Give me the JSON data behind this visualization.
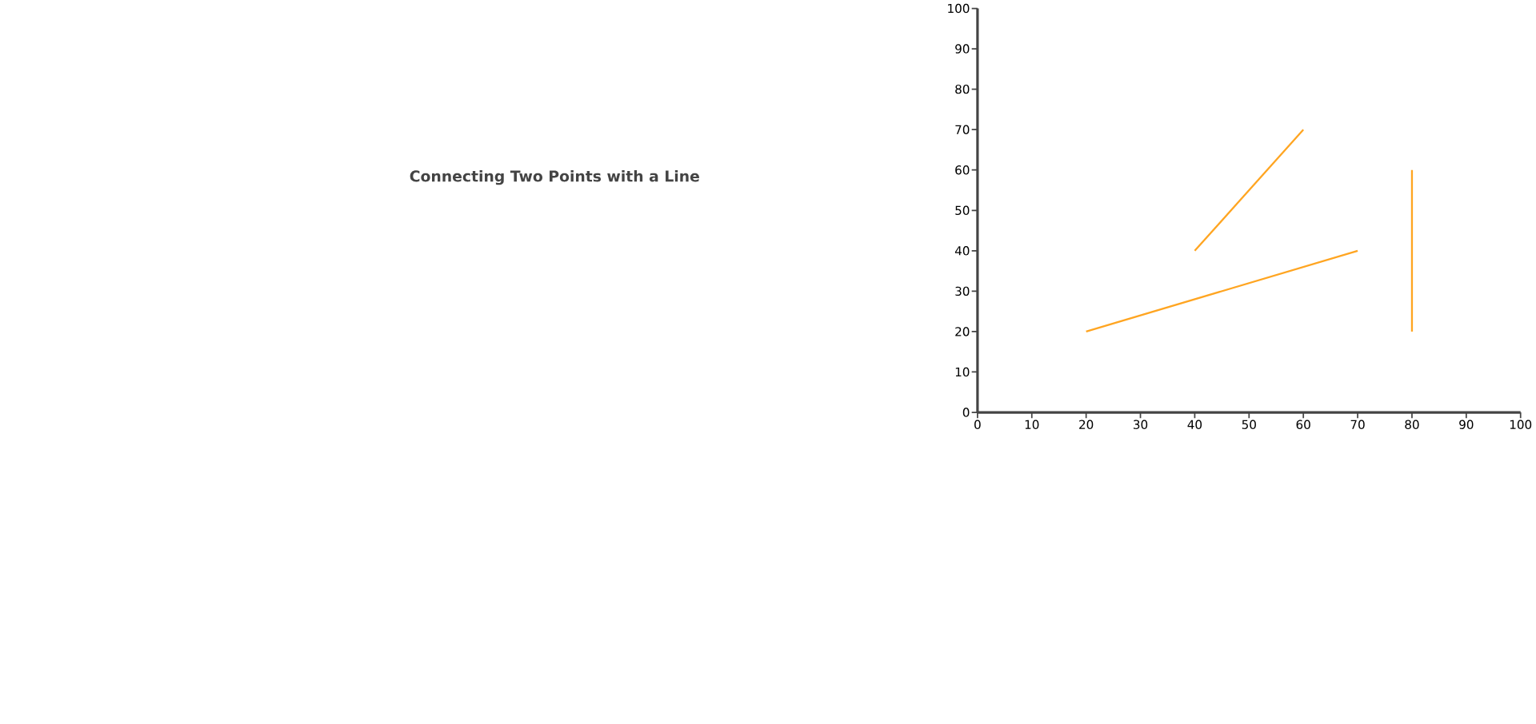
{
  "chart_data": {
    "type": "line",
    "title": "Connecting Two Points with a Line",
    "xlim": [
      0,
      100
    ],
    "ylim": [
      0,
      100
    ],
    "xticks": [
      0,
      10,
      20,
      30,
      40,
      50,
      60,
      70,
      80,
      90,
      100
    ],
    "yticks": [
      0,
      10,
      20,
      30,
      40,
      50,
      60,
      70,
      80,
      90,
      100
    ],
    "series": [
      {
        "color": "#ffa521",
        "x": [
          20,
          70
        ],
        "values": [
          20,
          40
        ]
      },
      {
        "color": "#ffa521",
        "x": [
          40,
          60
        ],
        "values": [
          40,
          70
        ]
      },
      {
        "color": "#ffa521",
        "x": [
          80,
          80
        ],
        "values": [
          20,
          60
        ]
      }
    ]
  }
}
